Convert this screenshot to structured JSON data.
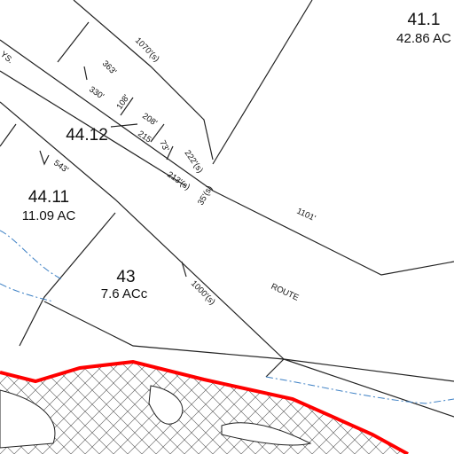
{
  "parcels": [
    {
      "id": "41.1",
      "area": "42.86 AC"
    },
    {
      "id": "44.12"
    },
    {
      "id": "44.11",
      "area": "11.09 AC"
    },
    {
      "id": "43",
      "area": "7.6 ACc"
    }
  ],
  "road_labels": [
    "YS.",
    "ROUTE"
  ],
  "dimensions": [
    "1070'(s)",
    "363'",
    "330'",
    "108'",
    "208'",
    "215'",
    "73'",
    "222'(s)",
    "213'(s)",
    "35'(s)",
    "543'",
    "1101'",
    "1000'(s)"
  ]
}
